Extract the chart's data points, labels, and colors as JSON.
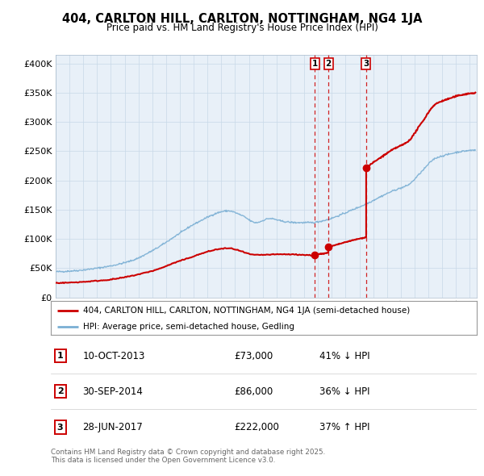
{
  "title": "404, CARLTON HILL, CARLTON, NOTTINGHAM, NG4 1JA",
  "subtitle": "Price paid vs. HM Land Registry's House Price Index (HPI)",
  "ytick_values": [
    0,
    50000,
    100000,
    150000,
    200000,
    250000,
    300000,
    350000,
    400000
  ],
  "ylim": [
    0,
    415000
  ],
  "xlim_start": 1995.0,
  "xlim_end": 2025.5,
  "transactions": [
    {
      "date_num": 2013.78,
      "price": 73000,
      "label": "1"
    },
    {
      "date_num": 2014.75,
      "price": 86000,
      "label": "2"
    },
    {
      "date_num": 2017.49,
      "price": 222000,
      "label": "3"
    }
  ],
  "transaction_line_color": "#cc0000",
  "hpi_line_color": "#7aafd4",
  "vline_color": "#cc0000",
  "plot_bg_color": "#e8f0f8",
  "legend_entries": [
    "404, CARLTON HILL, CARLTON, NOTTINGHAM, NG4 1JA (semi-detached house)",
    "HPI: Average price, semi-detached house, Gedling"
  ],
  "table_rows": [
    {
      "num": "1",
      "date": "10-OCT-2013",
      "price": "£73,000",
      "pct": "41% ↓ HPI"
    },
    {
      "num": "2",
      "date": "30-SEP-2014",
      "price": "£86,000",
      "pct": "36% ↓ HPI"
    },
    {
      "num": "3",
      "date": "28-JUN-2017",
      "price": "£222,000",
      "pct": "37% ↑ HPI"
    }
  ],
  "footnote": "Contains HM Land Registry data © Crown copyright and database right 2025.\nThis data is licensed under the Open Government Licence v3.0.",
  "background_color": "#ffffff",
  "grid_color": "#c8d8e8"
}
